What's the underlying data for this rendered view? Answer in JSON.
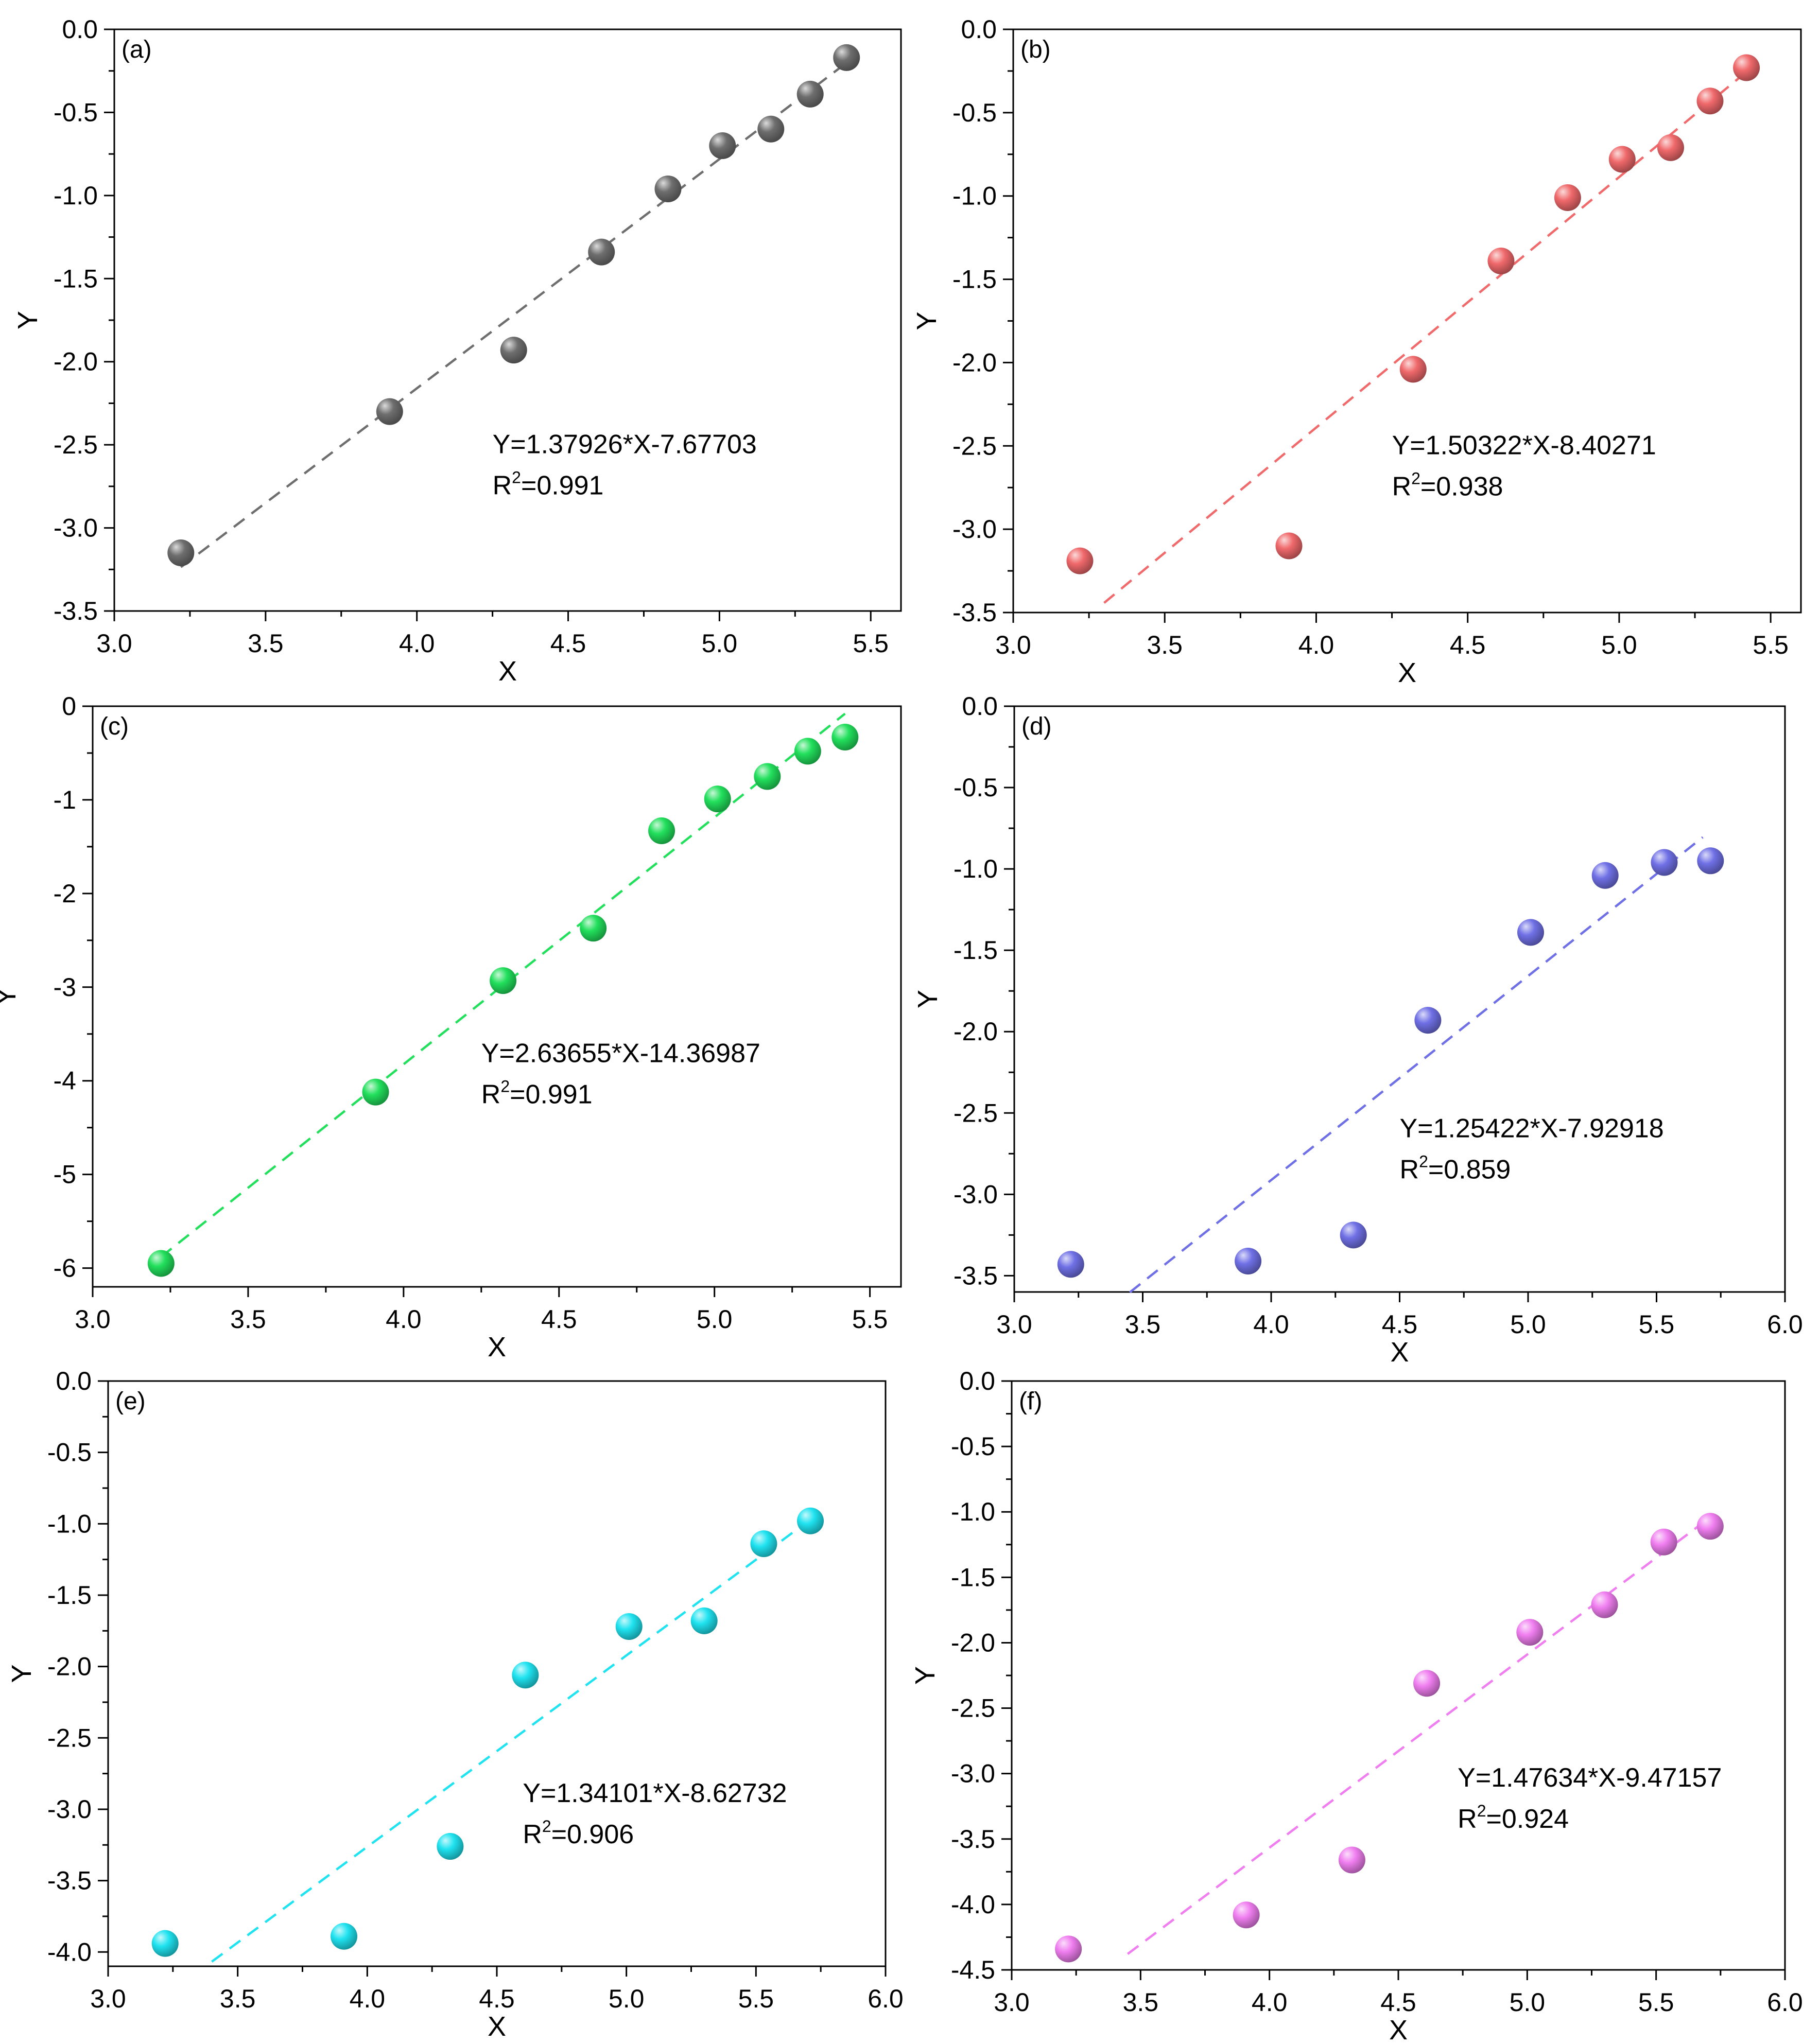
{
  "figure": {
    "x_title": "X",
    "y_title": "Y"
  },
  "chart_data": [
    {
      "type": "scatter",
      "panel_label": "(a)",
      "color": "#6e6e6e",
      "x": [
        3.22,
        3.91,
        4.32,
        4.61,
        4.83,
        5.01,
        5.17,
        5.3,
        5.42
      ],
      "y": [
        -3.15,
        -2.3,
        -1.93,
        -1.34,
        -0.96,
        -0.7,
        -0.6,
        -0.39,
        -0.17
      ],
      "xlim": [
        3.0,
        5.6
      ],
      "ylim": [
        -3.5,
        0.0
      ],
      "xticks": [
        3.0,
        3.5,
        4.0,
        4.5,
        5.0,
        5.5
      ],
      "xtick_labels": [
        "3.0",
        "3.5",
        "4.0",
        "4.5",
        "5.0",
        "5.5"
      ],
      "yticks": [
        0.0,
        -0.5,
        -1.0,
        -1.5,
        -2.0,
        -2.5,
        -3.0,
        -3.5
      ],
      "ytick_labels": [
        "0.0",
        "-0.5",
        "-1.0",
        "-1.5",
        "-2.0",
        "-2.5",
        "-3.0",
        "-3.5"
      ],
      "xlabel": "X",
      "ylabel": "Y",
      "fit": {
        "slope": 1.37926,
        "intercept": -7.67703,
        "x_start": 3.22,
        "x_end": 5.45
      },
      "equation": "Y=1.37926*X-7.67703",
      "r2_label": "R",
      "r2_sup": "2",
      "r2_value": "=0.991",
      "annotation_pos": {
        "x": 4.25,
        "y": -2.55
      }
    },
    {
      "type": "scatter",
      "panel_label": "(b)",
      "color": "#f0696b",
      "x": [
        3.22,
        3.91,
        4.32,
        4.61,
        4.83,
        5.01,
        5.17,
        5.3,
        5.42
      ],
      "y": [
        -3.19,
        -3.1,
        -2.04,
        -1.39,
        -1.01,
        -0.78,
        -0.71,
        -0.43,
        -0.23
      ],
      "xlim": [
        3.0,
        5.6
      ],
      "ylim": [
        -3.5,
        0.0
      ],
      "xticks": [
        3.0,
        3.5,
        4.0,
        4.5,
        5.0,
        5.5
      ],
      "xtick_labels": [
        "3.0",
        "3.5",
        "4.0",
        "4.5",
        "5.0",
        "5.5"
      ],
      "yticks": [
        0.0,
        -0.5,
        -1.0,
        -1.5,
        -2.0,
        -2.5,
        -3.0,
        -3.5
      ],
      "ytick_labels": [
        "0.0",
        "-0.5",
        "-1.0",
        "-1.5",
        "-2.0",
        "-2.5",
        "-3.0",
        "-3.5"
      ],
      "xlabel": "X",
      "ylabel": "Y",
      "fit": {
        "slope": 1.50322,
        "intercept": -8.40271,
        "x_start": 3.3,
        "x_end": 5.45
      },
      "equation": "Y=1.50322*X-8.40271",
      "r2_label": "R",
      "r2_sup": "2",
      "r2_value": "=0.938",
      "annotation_pos": {
        "x": 4.25,
        "y": -2.55
      }
    },
    {
      "type": "scatter",
      "panel_label": "(c)",
      "color": "#22e05c",
      "x": [
        3.22,
        3.91,
        4.32,
        4.61,
        4.83,
        5.01,
        5.17,
        5.3,
        5.42
      ],
      "y": [
        -5.95,
        -4.12,
        -2.93,
        -2.37,
        -1.33,
        -0.99,
        -0.75,
        -0.48,
        -0.33
      ],
      "xlim": [
        3.0,
        5.6
      ],
      "ylim": [
        -6.2,
        0.0
      ],
      "xticks": [
        3.0,
        3.5,
        4.0,
        4.5,
        5.0,
        5.5
      ],
      "xtick_labels": [
        "3.0",
        "3.5",
        "4.0",
        "4.5",
        "5.0",
        "5.5"
      ],
      "yticks": [
        0,
        -1,
        -2,
        -3,
        -4,
        -5,
        -6
      ],
      "ytick_labels": [
        "0",
        "-1",
        "-2",
        "-3",
        "-4",
        "-5",
        "-6"
      ],
      "xlabel": "X",
      "ylabel": "Y",
      "fit": {
        "slope": 2.63655,
        "intercept": -14.36987,
        "x_start": 3.22,
        "x_end": 5.42
      },
      "equation": "Y=2.63655*X-14.36987",
      "r2_label": "R",
      "r2_sup": "2",
      "r2_value": "=0.991",
      "annotation_pos": {
        "x": 4.25,
        "y": -3.8
      }
    },
    {
      "type": "scatter",
      "panel_label": "(d)",
      "color": "#7070e6",
      "x": [
        3.22,
        3.91,
        4.32,
        4.61,
        5.01,
        5.3,
        5.53,
        5.71
      ],
      "y": [
        -3.43,
        -3.41,
        -3.25,
        -1.93,
        -1.39,
        -1.04,
        -0.96,
        -0.95
      ],
      "xlim": [
        3.0,
        6.0
      ],
      "ylim": [
        -3.6,
        0.0
      ],
      "xticks": [
        3.0,
        3.5,
        4.0,
        4.5,
        5.0,
        5.5,
        6.0
      ],
      "xtick_labels": [
        "3.0",
        "3.5",
        "4.0",
        "4.5",
        "5.0",
        "5.5",
        "6.0"
      ],
      "yticks": [
        0.0,
        -0.5,
        -1.0,
        -1.5,
        -2.0,
        -2.5,
        -3.0,
        -3.5
      ],
      "ytick_labels": [
        "0.0",
        "-0.5",
        "-1.0",
        "-1.5",
        "-2.0",
        "-2.5",
        "-3.0",
        "-3.5"
      ],
      "xlabel": "X",
      "ylabel": "Y",
      "fit": {
        "slope": 1.25422,
        "intercept": -7.92918,
        "x_start": 3.45,
        "x_end": 5.68
      },
      "equation": "Y=1.25422*X-7.92918",
      "r2_label": "R",
      "r2_sup": "2",
      "r2_value": "=0.859",
      "annotation_pos": {
        "x": 4.5,
        "y": -2.65
      }
    },
    {
      "type": "scatter",
      "panel_label": "(e)",
      "color": "#1fe3f0",
      "x": [
        3.22,
        3.91,
        4.32,
        4.61,
        5.01,
        5.3,
        5.53,
        5.71
      ],
      "y": [
        -3.94,
        -3.89,
        -3.26,
        -2.06,
        -1.72,
        -1.68,
        -1.14,
        -0.98
      ],
      "xlim": [
        3.0,
        6.0
      ],
      "ylim": [
        -4.1,
        0.0
      ],
      "xticks": [
        3.0,
        3.5,
        4.0,
        4.5,
        5.0,
        5.5,
        6.0
      ],
      "xtick_labels": [
        "3.0",
        "3.5",
        "4.0",
        "4.5",
        "5.0",
        "5.5",
        "6.0"
      ],
      "yticks": [
        0.0,
        -0.5,
        -1.0,
        -1.5,
        -2.0,
        -2.5,
        -3.0,
        -3.5,
        -4.0
      ],
      "ytick_labels": [
        "0.0",
        "-0.5",
        "-1.0",
        "-1.5",
        "-2.0",
        "-2.5",
        "-3.0",
        "-3.5",
        "-4.0"
      ],
      "xlabel": "X",
      "ylabel": "Y",
      "fit": {
        "slope": 1.34101,
        "intercept": -8.62732,
        "x_start": 3.4,
        "x_end": 5.68
      },
      "equation": "Y=1.34101*X-8.62732",
      "r2_label": "R",
      "r2_sup": "2",
      "r2_value": "=0.906",
      "annotation_pos": {
        "x": 4.6,
        "y": -2.95
      }
    },
    {
      "type": "scatter",
      "panel_label": "(f)",
      "color": "#f07ef0",
      "x": [
        3.22,
        3.91,
        4.32,
        4.61,
        5.01,
        5.3,
        5.53,
        5.71
      ],
      "y": [
        -4.34,
        -4.08,
        -3.66,
        -2.31,
        -1.92,
        -1.71,
        -1.23,
        -1.11
      ],
      "xlim": [
        3.0,
        6.0
      ],
      "ylim": [
        -4.5,
        0.0
      ],
      "xticks": [
        3.0,
        3.5,
        4.0,
        4.5,
        5.0,
        5.5,
        6.0
      ],
      "xtick_labels": [
        "3.0",
        "3.5",
        "4.0",
        "4.5",
        "5.0",
        "5.5",
        "6.0"
      ],
      "yticks": [
        0.0,
        -0.5,
        -1.0,
        -1.5,
        -2.0,
        -2.5,
        -3.0,
        -3.5,
        -4.0,
        -4.5
      ],
      "ytick_labels": [
        "0.0",
        "-0.5",
        "-1.0",
        "-1.5",
        "-2.0",
        "-2.5",
        "-3.0",
        "-3.5",
        "-4.0",
        "-4.5"
      ],
      "xlabel": "X",
      "ylabel": "Y",
      "fit": {
        "slope": 1.47634,
        "intercept": -9.47157,
        "x_start": 3.45,
        "x_end": 5.7
      },
      "equation": "Y=1.47634*X-9.47157",
      "r2_label": "R",
      "r2_sup": "2",
      "r2_value": "=0.924",
      "annotation_pos": {
        "x": 4.73,
        "y": -3.1
      }
    }
  ]
}
